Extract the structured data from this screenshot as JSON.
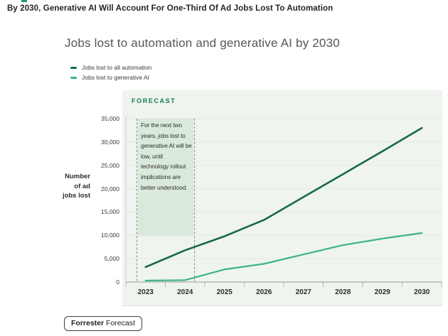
{
  "page": {
    "headline": "By 2030, Generative AI Will Account For One-Third Of Ad Jobs Lost To Automation"
  },
  "chart": {
    "title": "Jobs lost to automation and generative AI by 2030",
    "forecast_label": "FORECAST",
    "ylabel": "Number of ad jobs lost",
    "footer_badge": {
      "brand": "Forrester",
      "label": "Forecast"
    }
  },
  "chart_data": {
    "type": "line",
    "x": [
      2023,
      2024,
      2025,
      2026,
      2027,
      2028,
      2029,
      2030
    ],
    "series": [
      {
        "name": "Jobs lost to all automation",
        "color": "#17684a",
        "values": [
          3200,
          6800,
          9800,
          13300,
          18200,
          23100,
          28000,
          33000
        ]
      },
      {
        "name": "Jobs lost to generative AI",
        "color": "#3db57e",
        "values": [
          300,
          400,
          2700,
          3900,
          5900,
          7900,
          9300,
          10500
        ]
      }
    ],
    "ylim": [
      0,
      35000
    ],
    "y_tick_step": 5000,
    "y_tick_labels": [
      "0",
      "5,000",
      "10,000",
      "15,000",
      "20,000",
      "25,000",
      "30,000",
      "35,000"
    ],
    "grid": true,
    "legend_position": "top-left",
    "annotation": {
      "text": "For the next two years, jobs lost to generative AI will be low, until technology rollout implications are better understood.",
      "x_from": 2022.78,
      "x_to": 2024.24,
      "band_top_value": 35000,
      "band_bottom_value": 10000,
      "fill": "#d9e9da",
      "border_color": "#868b86",
      "border_style": "dashed"
    },
    "colors": {
      "card_background": "#f0f4ee",
      "gridline": "#e3e8e2",
      "axis": "#b4b8b3",
      "forecast_text": "#15794f"
    }
  }
}
